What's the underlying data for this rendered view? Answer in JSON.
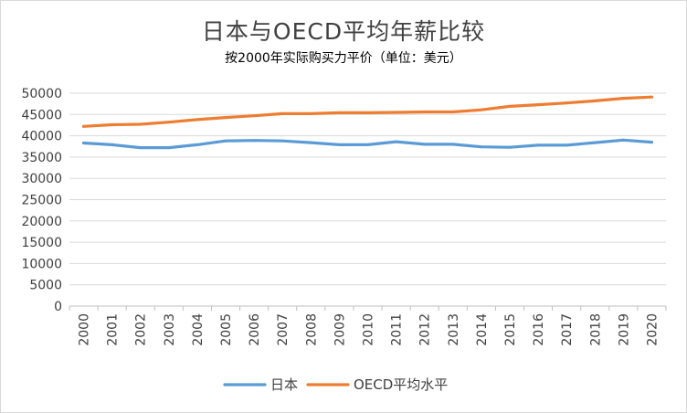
{
  "chart_data": {
    "type": "line",
    "title": "日本与OECD平均年薪比较",
    "subtitle": "按2000年实际购买力平价（单位：美元）",
    "xlabel": "",
    "ylabel": "",
    "ylim": [
      0,
      50000
    ],
    "yticks": [
      0,
      5000,
      10000,
      15000,
      20000,
      25000,
      30000,
      35000,
      40000,
      45000,
      50000
    ],
    "grid": true,
    "legend_position": "bottom",
    "categories": [
      "2000",
      "2001",
      "2002",
      "2003",
      "2004",
      "2005",
      "2006",
      "2007",
      "2008",
      "2009",
      "2010",
      "2011",
      "2012",
      "2013",
      "2014",
      "2015",
      "2016",
      "2017",
      "2018",
      "2019",
      "2020"
    ],
    "series": [
      {
        "name": "日本",
        "color": "#5B9BD5",
        "values": [
          38300,
          37900,
          37200,
          37200,
          37900,
          38800,
          38900,
          38800,
          38400,
          37900,
          37900,
          38600,
          38000,
          38000,
          37400,
          37300,
          37800,
          37800,
          38400,
          39000,
          38500
        ]
      },
      {
        "name": "OECD平均水平",
        "color": "#ED7D31",
        "values": [
          42200,
          42600,
          42700,
          43200,
          43800,
          44300,
          44700,
          45200,
          45200,
          45400,
          45400,
          45500,
          45600,
          45600,
          46100,
          46900,
          47300,
          47700,
          48200,
          48800,
          49100
        ]
      }
    ]
  }
}
